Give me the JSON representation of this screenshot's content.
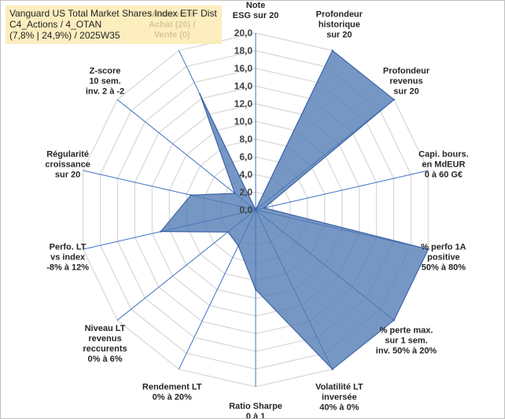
{
  "title": {
    "line1": "Vanguard US Total Market Shares Index ETF Dist",
    "line2": "C4_Actions / 4_OTAN",
    "line3": "(7,8% | 24,9%) / 2025W35"
  },
  "colors": {
    "fill": "#4f7ab3",
    "fill_opacity": 0.78,
    "stroke": "#3e64a8",
    "spoke": "#3c6fc4",
    "grid": "#d9d9d9",
    "title_bg": "#fdeab2"
  },
  "chart_data": {
    "type": "radar",
    "rlim": [
      0,
      20
    ],
    "r_ticks": [
      "0,0",
      "2,0",
      "4,0",
      "6,0",
      "8,0",
      "10,0",
      "12,0",
      "14,0",
      "16,0",
      "18,0",
      "20,0"
    ],
    "grid": true,
    "axes": [
      [
        "Note",
        "ESG sur 20"
      ],
      [
        "Profondeur",
        "historique",
        "sur 20"
      ],
      [
        "Profondeur",
        "revenus",
        "sur 20"
      ],
      [
        "Capi. bours.",
        "en MdEUR",
        "0 à 60 G€"
      ],
      [
        "% perfo 1A",
        "positive",
        "50% à 80%"
      ],
      [
        "% perte max.",
        "sur 1 sem.",
        "inv. 50% à 20%"
      ],
      [
        "Volatilité LT",
        "inversée",
        "40% à 0%"
      ],
      [
        "Ratio Sharpe",
        "0 à 1"
      ],
      [
        "Rendement LT",
        "0% à 20%"
      ],
      [
        "Niveau LT",
        "revenus",
        "reccurents",
        "0% à 6%"
      ],
      [
        "Perfo. LT",
        "vs index",
        "-8% à 12%"
      ],
      [
        "Régularité",
        "croissance",
        "sur 20"
      ],
      [
        "Z-score",
        "10 sem.",
        "inv. 2 à -2"
      ],
      [
        "Momentum",
        "Achat (20) /",
        "Vente (0)"
      ]
    ],
    "values": [
      0.0,
      20.0,
      20.0,
      1.0,
      20.0,
      20.0,
      20.0,
      9.0,
      4.5,
      4.0,
      11.0,
      7.5,
      3.0,
      14.5
    ]
  }
}
